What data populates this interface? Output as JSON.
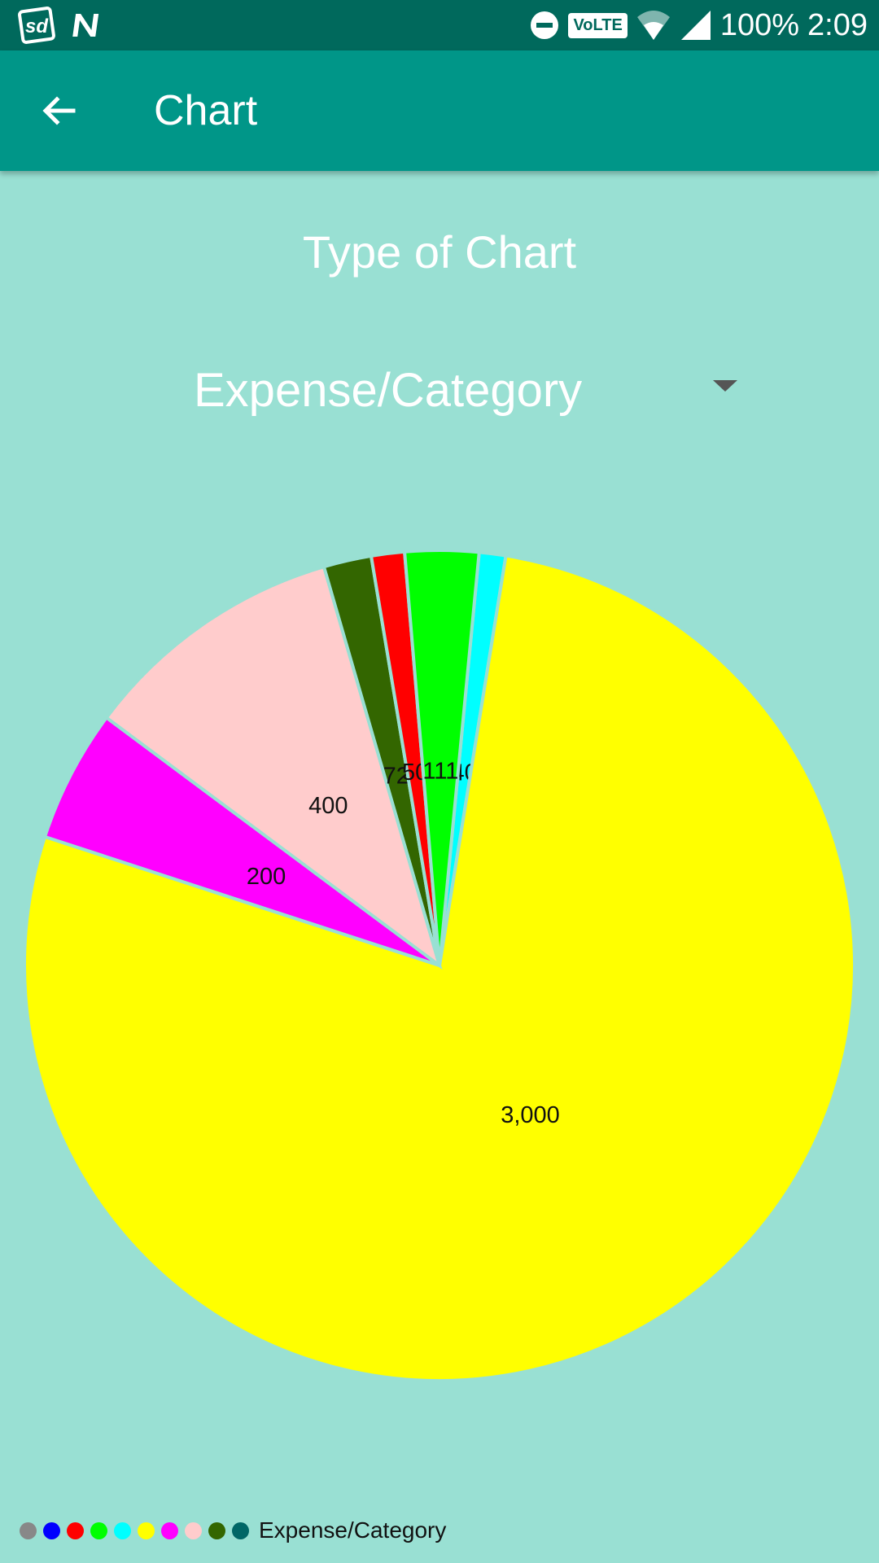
{
  "status_bar": {
    "battery": "100%",
    "time": "2:09",
    "volte_label": "VoLTE"
  },
  "app_bar": {
    "title": "Chart"
  },
  "page": {
    "section_title": "Type of Chart",
    "chart_type_selected": "Expense/Category"
  },
  "chart_data": {
    "type": "pie",
    "title": "",
    "slices": [
      {
        "value": 40,
        "label": "40",
        "color": "#00ffff"
      },
      {
        "value": 3000,
        "label": "3,000",
        "color": "#ffff00"
      },
      {
        "value": 200,
        "label": "200",
        "color": "#ff00ff"
      },
      {
        "value": 400,
        "label": "400",
        "color": "#ffcccc"
      },
      {
        "value": 72,
        "label": "72",
        "color": "#336600"
      },
      {
        "value": 50,
        "label": "50",
        "color": "#ff0000"
      },
      {
        "value": 111,
        "label": "111",
        "color": "#00ff00"
      }
    ],
    "legend": {
      "label": "Expense/Category",
      "colors": [
        "#888888",
        "#0000ff",
        "#ff0000",
        "#00ff00",
        "#00ffff",
        "#ffff00",
        "#ff00ff",
        "#ffcccc",
        "#336600",
        "#006666"
      ]
    }
  }
}
